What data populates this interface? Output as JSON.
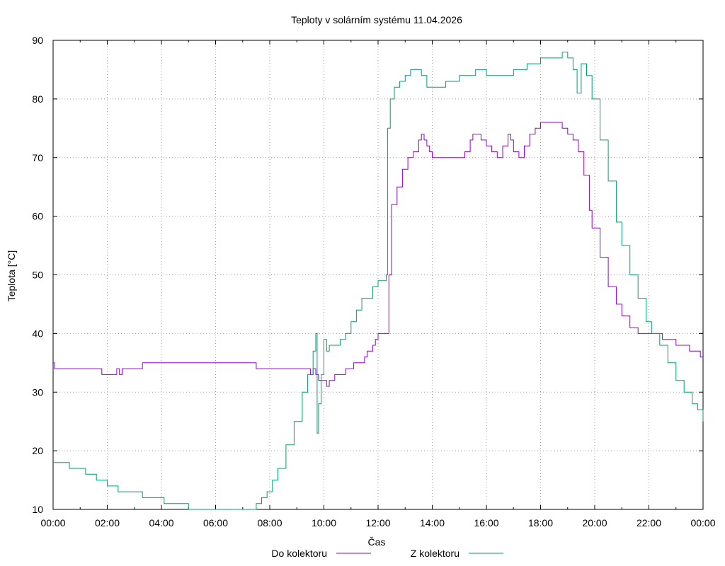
{
  "chart_data": {
    "type": "line",
    "title": "Teploty v solárním systému 11.04.2026",
    "xlabel": "Čas",
    "ylabel": "Teplota [°C]",
    "xlim": [
      0,
      24
    ],
    "ylim": [
      10,
      90
    ],
    "x_ticks": [
      "00:00",
      "02:00",
      "04:00",
      "06:00",
      "08:00",
      "10:00",
      "12:00",
      "14:00",
      "16:00",
      "18:00",
      "20:00",
      "22:00",
      "00:00"
    ],
    "y_ticks": [
      10,
      20,
      30,
      40,
      50,
      60,
      70,
      80,
      90
    ],
    "grid": true,
    "legend_position": "bottom",
    "series": [
      {
        "name": "Do kolektoru",
        "color": "#9400d3",
        "points": [
          [
            0,
            35
          ],
          [
            0.05,
            34
          ],
          [
            1.8,
            34
          ],
          [
            1.8,
            33
          ],
          [
            2.3,
            33
          ],
          [
            2.35,
            34
          ],
          [
            2.45,
            33
          ],
          [
            2.55,
            34
          ],
          [
            3.3,
            34
          ],
          [
            3.3,
            35
          ],
          [
            7.5,
            35
          ],
          [
            7.5,
            34
          ],
          [
            9.4,
            34
          ],
          [
            9.5,
            33
          ],
          [
            9.6,
            34
          ],
          [
            9.7,
            33
          ],
          [
            9.8,
            33
          ],
          [
            9.8,
            32
          ],
          [
            10.0,
            32
          ],
          [
            10.1,
            31
          ],
          [
            10.2,
            32
          ],
          [
            10.4,
            33
          ],
          [
            10.7,
            33
          ],
          [
            10.8,
            34
          ],
          [
            11.0,
            34
          ],
          [
            11.1,
            35
          ],
          [
            11.3,
            35
          ],
          [
            11.5,
            36
          ],
          [
            11.6,
            37
          ],
          [
            11.8,
            38
          ],
          [
            11.9,
            39
          ],
          [
            12.0,
            40
          ],
          [
            12.35,
            40
          ],
          [
            12.4,
            50
          ],
          [
            12.5,
            62
          ],
          [
            12.7,
            65
          ],
          [
            12.9,
            68
          ],
          [
            13.1,
            70
          ],
          [
            13.3,
            71
          ],
          [
            13.5,
            73
          ],
          [
            13.6,
            74
          ],
          [
            13.7,
            73
          ],
          [
            13.8,
            72
          ],
          [
            13.9,
            71
          ],
          [
            14.0,
            70
          ],
          [
            14.5,
            70
          ],
          [
            14.8,
            70
          ],
          [
            15.0,
            70
          ],
          [
            15.2,
            71
          ],
          [
            15.4,
            73
          ],
          [
            15.5,
            74
          ],
          [
            15.7,
            74
          ],
          [
            15.8,
            73
          ],
          [
            16.0,
            72
          ],
          [
            16.2,
            71
          ],
          [
            16.4,
            70
          ],
          [
            16.6,
            72
          ],
          [
            16.8,
            74
          ],
          [
            16.9,
            73
          ],
          [
            17.0,
            71
          ],
          [
            17.2,
            70
          ],
          [
            17.4,
            72
          ],
          [
            17.6,
            74
          ],
          [
            17.8,
            75
          ],
          [
            18.0,
            76
          ],
          [
            18.5,
            76
          ],
          [
            18.7,
            76
          ],
          [
            18.8,
            75
          ],
          [
            19.0,
            74
          ],
          [
            19.2,
            73
          ],
          [
            19.4,
            71
          ],
          [
            19.6,
            67
          ],
          [
            19.8,
            61
          ],
          [
            19.9,
            58
          ],
          [
            20.2,
            53
          ],
          [
            20.5,
            48
          ],
          [
            20.8,
            45
          ],
          [
            21.0,
            43
          ],
          [
            21.3,
            41
          ],
          [
            21.6,
            40
          ],
          [
            22.0,
            40
          ],
          [
            22.5,
            39
          ],
          [
            23.0,
            38
          ],
          [
            23.5,
            37
          ],
          [
            23.8,
            37
          ],
          [
            23.9,
            36
          ],
          [
            24.0,
            36
          ]
        ]
      },
      {
        "name": "Z kolektoru",
        "color": "#009e73",
        "points": [
          [
            0,
            18
          ],
          [
            0.3,
            18
          ],
          [
            0.6,
            18
          ],
          [
            0.6,
            17
          ],
          [
            0.9,
            17
          ],
          [
            1.2,
            17
          ],
          [
            1.2,
            16
          ],
          [
            1.6,
            16
          ],
          [
            1.6,
            15
          ],
          [
            2.0,
            15
          ],
          [
            2.0,
            14
          ],
          [
            2.3,
            14
          ],
          [
            2.4,
            13
          ],
          [
            2.6,
            13
          ],
          [
            3.0,
            13
          ],
          [
            3.3,
            13
          ],
          [
            3.3,
            12
          ],
          [
            3.5,
            12
          ],
          [
            4.0,
            12
          ],
          [
            4.1,
            11
          ],
          [
            4.8,
            11
          ],
          [
            5.0,
            10
          ],
          [
            7.3,
            10
          ],
          [
            7.5,
            11
          ],
          [
            7.7,
            12
          ],
          [
            7.9,
            13
          ],
          [
            8.1,
            15
          ],
          [
            8.3,
            17
          ],
          [
            8.6,
            21
          ],
          [
            8.9,
            25
          ],
          [
            9.2,
            30
          ],
          [
            9.4,
            33
          ],
          [
            9.6,
            37
          ],
          [
            9.7,
            40
          ],
          [
            9.75,
            23
          ],
          [
            9.8,
            28
          ],
          [
            9.9,
            33
          ],
          [
            10.0,
            39
          ],
          [
            10.1,
            37
          ],
          [
            10.2,
            38
          ],
          [
            10.4,
            38
          ],
          [
            10.6,
            39
          ],
          [
            10.8,
            40
          ],
          [
            11.0,
            42
          ],
          [
            11.2,
            44
          ],
          [
            11.4,
            46
          ],
          [
            11.6,
            46
          ],
          [
            11.8,
            48
          ],
          [
            12.0,
            49
          ],
          [
            12.2,
            49
          ],
          [
            12.3,
            50
          ],
          [
            12.35,
            75
          ],
          [
            12.45,
            80
          ],
          [
            12.6,
            82
          ],
          [
            12.8,
            83
          ],
          [
            13.0,
            84
          ],
          [
            13.2,
            85
          ],
          [
            13.4,
            85
          ],
          [
            13.6,
            84
          ],
          [
            13.8,
            82
          ],
          [
            14.0,
            82
          ],
          [
            14.5,
            83
          ],
          [
            15.0,
            84
          ],
          [
            15.3,
            84
          ],
          [
            15.6,
            85
          ],
          [
            16.0,
            84
          ],
          [
            16.5,
            84
          ],
          [
            17.0,
            85
          ],
          [
            17.5,
            86
          ],
          [
            18.0,
            87
          ],
          [
            18.5,
            87
          ],
          [
            18.8,
            88
          ],
          [
            19.0,
            87
          ],
          [
            19.2,
            85
          ],
          [
            19.35,
            81
          ],
          [
            19.5,
            86
          ],
          [
            19.7,
            84
          ],
          [
            19.9,
            80
          ],
          [
            20.2,
            73
          ],
          [
            20.5,
            66
          ],
          [
            20.8,
            59
          ],
          [
            21.0,
            55
          ],
          [
            21.3,
            50
          ],
          [
            21.6,
            46
          ],
          [
            21.9,
            42
          ],
          [
            22.1,
            40
          ],
          [
            22.4,
            38
          ],
          [
            22.7,
            35
          ],
          [
            23.0,
            32
          ],
          [
            23.3,
            30
          ],
          [
            23.6,
            28
          ],
          [
            23.8,
            27
          ],
          [
            24.0,
            25
          ]
        ]
      }
    ]
  }
}
